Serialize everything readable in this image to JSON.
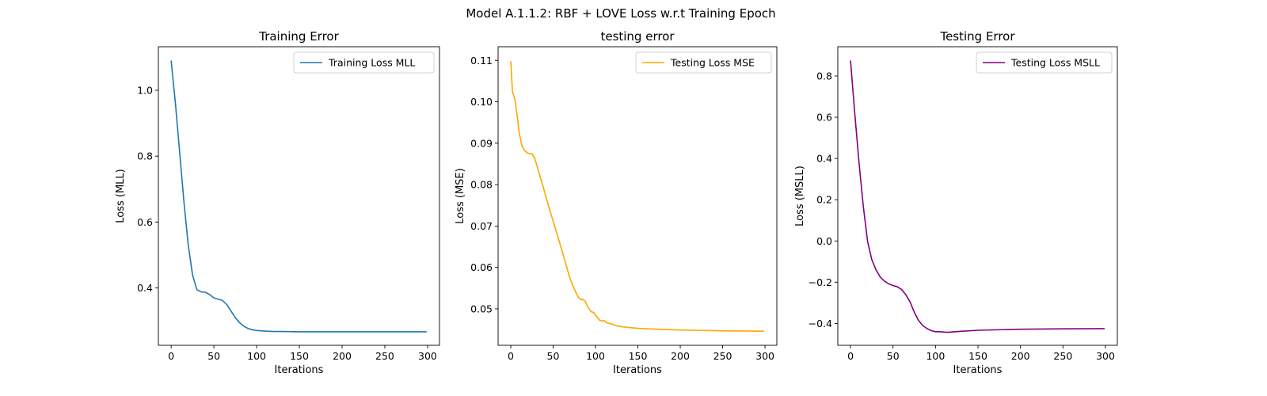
{
  "figure": {
    "suptitle": "Model A.1.1.2: RBF + LOVE Loss w.r.t Training Epoch"
  },
  "chart_data": [
    {
      "type": "line",
      "title": "Training Error",
      "xlabel": "Iterations",
      "ylabel": "Loss (MLL)",
      "xlim": [
        -14.95,
        313.95
      ],
      "ylim": [
        0.226,
        1.132
      ],
      "xticks": [
        0,
        50,
        100,
        150,
        200,
        250,
        300
      ],
      "yticks": [
        0.4,
        0.6,
        0.8,
        1.0
      ],
      "ytick_labels": [
        "0.4",
        "0.6",
        "0.8",
        "1.0"
      ],
      "legend_position": "top-right",
      "series": [
        {
          "name": "Training Loss MLL",
          "color": "#1f77b4",
          "x": [
            0,
            5,
            10,
            15,
            20,
            25,
            30,
            35,
            40,
            45,
            50,
            55,
            60,
            65,
            70,
            75,
            80,
            85,
            90,
            95,
            100,
            110,
            120,
            130,
            150,
            200,
            250,
            299
          ],
          "y": [
            1.09,
            0.96,
            0.81,
            0.66,
            0.53,
            0.44,
            0.395,
            0.388,
            0.387,
            0.38,
            0.37,
            0.366,
            0.362,
            0.35,
            0.33,
            0.31,
            0.295,
            0.284,
            0.277,
            0.273,
            0.271,
            0.269,
            0.268,
            0.268,
            0.267,
            0.267,
            0.267,
            0.267
          ]
        }
      ]
    },
    {
      "type": "line",
      "title": "testing error",
      "xlabel": "Iterations",
      "ylabel": "Loss (MSE)",
      "xlim": [
        -14.95,
        313.95
      ],
      "ylim": [
        0.0412,
        0.1133
      ],
      "xticks": [
        0,
        50,
        100,
        150,
        200,
        250,
        300
      ],
      "yticks": [
        0.05,
        0.06,
        0.07,
        0.08,
        0.09,
        0.1,
        0.11
      ],
      "ytick_labels": [
        "0.05",
        "0.06",
        "0.07",
        "0.08",
        "0.09",
        "0.10",
        "0.11"
      ],
      "legend_position": "top-right",
      "series": [
        {
          "name": "Testing Loss MSE",
          "color": "#ffa500",
          "x": [
            0,
            2,
            5,
            8,
            10,
            13,
            16,
            20,
            25,
            28,
            30,
            35,
            40,
            45,
            50,
            55,
            60,
            65,
            70,
            75,
            78,
            80,
            83,
            85,
            88,
            90,
            93,
            95,
            98,
            100,
            103,
            105,
            108,
            110,
            113,
            116,
            120,
            125,
            130,
            140,
            150,
            170,
            200,
            250,
            299
          ],
          "y": [
            0.1098,
            0.1025,
            0.1005,
            0.096,
            0.0925,
            0.0895,
            0.0883,
            0.0876,
            0.0874,
            0.0865,
            0.0852,
            0.0817,
            0.0782,
            0.0745,
            0.0712,
            0.0678,
            0.0644,
            0.0608,
            0.0573,
            0.0548,
            0.0535,
            0.0527,
            0.0522,
            0.0523,
            0.0518,
            0.0508,
            0.0498,
            0.0493,
            0.0491,
            0.0485,
            0.0478,
            0.0472,
            0.0471,
            0.0472,
            0.0467,
            0.0465,
            0.0463,
            0.0459,
            0.0457,
            0.0455,
            0.0453,
            0.0451,
            0.0449,
            0.0447,
            0.0446
          ]
        }
      ]
    },
    {
      "type": "line",
      "title": "Testing Error",
      "xlabel": "Iterations",
      "ylabel": "Loss (MSLL)",
      "xlim": [
        -14.95,
        313.95
      ],
      "ylim": [
        -0.506,
        0.942
      ],
      "xticks": [
        0,
        50,
        100,
        150,
        200,
        250,
        300
      ],
      "yticks": [
        -0.4,
        -0.2,
        0.0,
        0.2,
        0.4,
        0.6,
        0.8
      ],
      "ytick_labels": [
        "−0.4",
        "−0.2",
        "0.0",
        "0.2",
        "0.4",
        "0.6",
        "0.8"
      ],
      "legend_position": "top-right",
      "series": [
        {
          "name": "Testing Loss MSLL",
          "color": "#800080",
          "x": [
            0,
            5,
            10,
            15,
            20,
            25,
            30,
            35,
            40,
            45,
            50,
            55,
            60,
            65,
            70,
            75,
            80,
            85,
            90,
            95,
            100,
            105,
            110,
            115,
            120,
            130,
            150,
            200,
            250,
            299
          ],
          "y": [
            0.875,
            0.62,
            0.38,
            0.17,
            0.0,
            -0.09,
            -0.14,
            -0.175,
            -0.195,
            -0.208,
            -0.216,
            -0.222,
            -0.235,
            -0.26,
            -0.295,
            -0.345,
            -0.385,
            -0.41,
            -0.425,
            -0.435,
            -0.44,
            -0.44,
            -0.442,
            -0.443,
            -0.441,
            -0.438,
            -0.433,
            -0.428,
            -0.426,
            -0.425
          ]
        }
      ]
    }
  ]
}
